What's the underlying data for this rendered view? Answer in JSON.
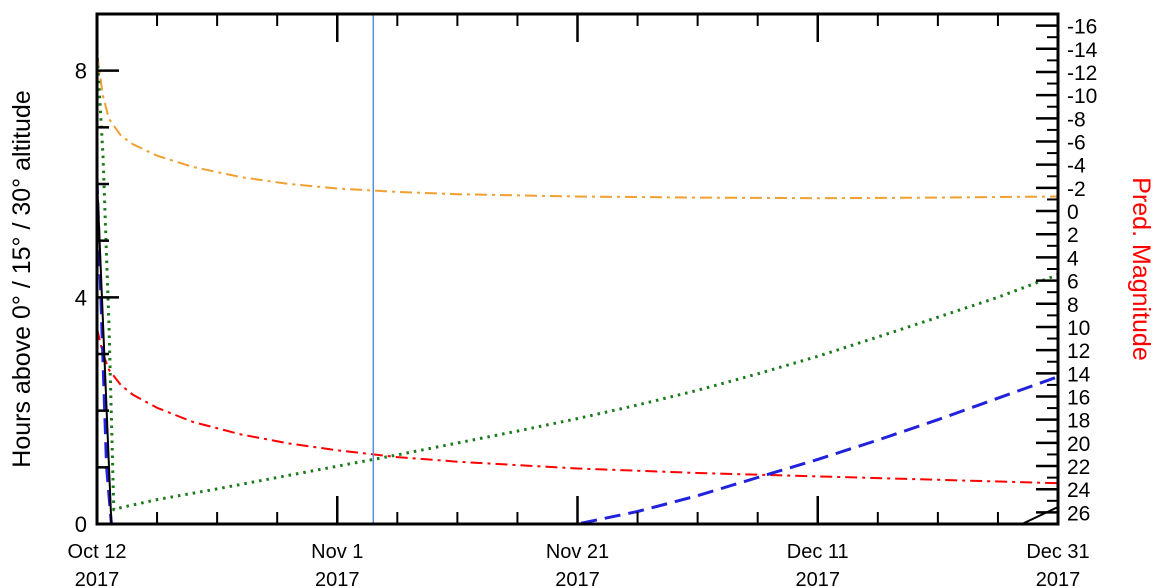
{
  "chart_data": {
    "type": "line",
    "ylabel": "Hours above  0° / 15° / 30° altitude",
    "y2label": "Pred. Magnitude",
    "xlim": [
      0,
      80
    ],
    "ylim": [
      0,
      9
    ],
    "y2lim": [
      27,
      -17
    ],
    "x_ticks": [
      {
        "x": 0,
        "line1": "Oct 12",
        "line2": "2017"
      },
      {
        "x": 20,
        "line1": "Nov  1",
        "line2": "2017"
      },
      {
        "x": 40,
        "line1": "Nov 21",
        "line2": "2017"
      },
      {
        "x": 60,
        "line1": "Dec 11",
        "line2": "2017"
      },
      {
        "x": 80,
        "line1": "Dec 31",
        "line2": "2017"
      }
    ],
    "y_ticks": [
      0,
      4,
      8
    ],
    "y2_ticks": [
      "-16",
      "-14",
      "-12",
      "-10",
      "-8",
      "-6",
      "-4",
      "-2",
      "0",
      "2",
      "4",
      "6",
      "8",
      "10",
      "12",
      "14",
      "16",
      "18",
      "20",
      "22",
      "24",
      "26"
    ],
    "colors": {
      "axis": "#000000",
      "y2label": "#ff0000",
      "current_date": "#5b8fdc"
    },
    "current_date_x": 23,
    "series": [
      {
        "id": "orange",
        "style": "dash-dot",
        "color": "#f0a030",
        "axis": "left",
        "x": [
          0,
          0.5,
          1,
          2,
          3,
          5,
          8,
          12,
          16,
          20,
          25,
          30,
          40,
          50,
          60,
          70,
          80
        ],
        "y": [
          8.3,
          7.55,
          7.15,
          6.85,
          6.7,
          6.5,
          6.3,
          6.12,
          6.0,
          5.92,
          5.86,
          5.82,
          5.78,
          5.76,
          5.75,
          5.76,
          5.78
        ]
      },
      {
        "id": "red",
        "style": "dash-dot",
        "color": "#ff0000",
        "axis": "left",
        "x": [
          0,
          0.5,
          1,
          2,
          3,
          5,
          8,
          12,
          16,
          20,
          25,
          30,
          40,
          50,
          60,
          70,
          80
        ],
        "y": [
          3.45,
          3.0,
          2.72,
          2.45,
          2.28,
          2.05,
          1.8,
          1.58,
          1.42,
          1.3,
          1.18,
          1.1,
          0.98,
          0.9,
          0.84,
          0.78,
          0.72
        ]
      },
      {
        "id": "green",
        "style": "dotted",
        "color": "#1a7a1a",
        "axis": "left",
        "x": [
          0,
          0.5,
          1,
          1.4,
          2,
          5,
          10,
          15,
          20,
          25,
          30,
          35,
          40,
          45,
          50,
          55,
          60,
          65,
          70,
          75,
          80
        ],
        "y": [
          8.35,
          6.5,
          3.5,
          0.25,
          0.29,
          0.43,
          0.62,
          0.82,
          1.02,
          1.22,
          1.43,
          1.64,
          1.86,
          2.1,
          2.36,
          2.65,
          2.96,
          3.3,
          3.65,
          4.0,
          4.4
        ]
      },
      {
        "id": "blue",
        "style": "dashed",
        "color": "#2222dd",
        "axis": "left",
        "x": [
          0,
          0.4,
          0.8,
          1.2,
          10,
          20,
          30,
          40,
          45,
          50,
          55,
          60,
          65,
          70,
          75,
          80
        ],
        "y": [
          6.1,
          3.5,
          1.0,
          0.0,
          0.0,
          0.0,
          0.0,
          0.0,
          0.22,
          0.5,
          0.82,
          1.14,
          1.48,
          1.84,
          2.22,
          2.6
        ]
      },
      {
        "id": "black",
        "style": "solid",
        "color": "#000000",
        "axis": "left",
        "x": [
          0,
          1,
          1.2,
          77,
          80
        ],
        "y": [
          6.1,
          1.0,
          0.0,
          0.0,
          0.3
        ]
      }
    ]
  }
}
